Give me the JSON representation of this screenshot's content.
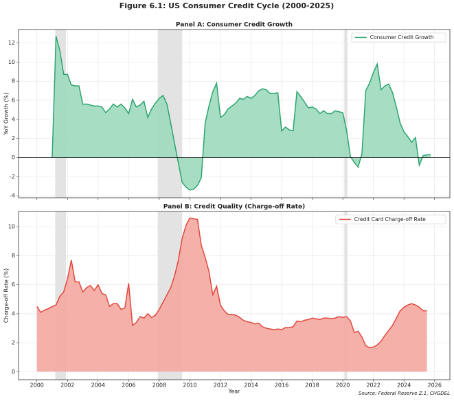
{
  "figure_title": "Figure 6.1: US Consumer Credit Cycle (2000-2025)",
  "source": "Source: Federal Reserve Z.1, CHGDEL",
  "chart_data": [
    {
      "type": "area",
      "title": "Panel A: Consumer Credit Growth",
      "ylabel": "YoY Growth (%)",
      "x": [
        2001.0,
        2001.25,
        2001.5,
        2001.75,
        2002.0,
        2002.25,
        2002.5,
        2002.75,
        2003.0,
        2003.25,
        2003.5,
        2003.75,
        2004.0,
        2004.25,
        2004.5,
        2004.75,
        2005.0,
        2005.25,
        2005.5,
        2005.75,
        2006.0,
        2006.25,
        2006.5,
        2006.75,
        2007.0,
        2007.25,
        2007.5,
        2007.75,
        2008.0,
        2008.25,
        2008.5,
        2008.75,
        2009.0,
        2009.25,
        2009.5,
        2009.75,
        2010.0,
        2010.25,
        2010.5,
        2010.75,
        2011.0,
        2011.25,
        2011.5,
        2011.75,
        2012.0,
        2012.25,
        2012.5,
        2012.75,
        2013.0,
        2013.25,
        2013.5,
        2013.75,
        2014.0,
        2014.25,
        2014.5,
        2014.75,
        2015.0,
        2015.25,
        2015.5,
        2015.75,
        2016.0,
        2016.25,
        2016.5,
        2016.75,
        2017.0,
        2017.25,
        2017.5,
        2017.75,
        2018.0,
        2018.25,
        2018.5,
        2018.75,
        2019.0,
        2019.25,
        2019.5,
        2019.75,
        2020.0,
        2020.25,
        2020.5,
        2020.75,
        2021.0,
        2021.25,
        2021.5,
        2021.75,
        2022.0,
        2022.25,
        2022.5,
        2022.75,
        2023.0,
        2023.25,
        2023.5,
        2023.75,
        2024.0,
        2024.25,
        2024.5,
        2024.75,
        2025.0,
        2025.25,
        2025.5,
        2025.75
      ],
      "series": [
        {
          "name": "Consumer Credit Growth",
          "color": "#2ca56e",
          "fill": "#9dd9bc",
          "values": [
            0,
            12.7,
            11.2,
            8.7,
            8.7,
            7.6,
            7.5,
            7.5,
            5.6,
            5.6,
            5.5,
            5.4,
            5.4,
            5.3,
            4.7,
            5.1,
            5.6,
            5.3,
            5.6,
            5.2,
            4.6,
            6.1,
            5.3,
            5.5,
            5.9,
            4.2,
            5.1,
            5.7,
            6.2,
            6.5,
            5.6,
            3.6,
            1.5,
            -0.6,
            -2.6,
            -3.1,
            -3.4,
            -3.3,
            -2.9,
            -2.1,
            3.6,
            5.4,
            6.9,
            7.8,
            4.2,
            4.5,
            5.1,
            5.4,
            5.7,
            6.2,
            6.1,
            6.4,
            6.2,
            6.5,
            7.0,
            7.2,
            7.1,
            6.7,
            6.7,
            6.8,
            2.8,
            3.2,
            2.9,
            2.8,
            6.9,
            6.4,
            5.8,
            5.2,
            5.3,
            5.1,
            4.6,
            4.9,
            4.6,
            4.6,
            4.9,
            4.8,
            4.7,
            2.8,
            0.1,
            -0.5,
            -1.0,
            0.4,
            7.0,
            7.8,
            8.9,
            9.8,
            7.1,
            7.5,
            7.7,
            6.8,
            5.3,
            3.6,
            2.7,
            2.2,
            1.6,
            2.1,
            -0.8,
            0.2,
            0.3,
            0.3
          ]
        }
      ],
      "xlim": [
        1998.8,
        2027
      ],
      "ylim": [
        -4.2,
        13.4
      ],
      "xticks": [
        2000,
        2002,
        2004,
        2006,
        2008,
        2010,
        2012,
        2014,
        2016,
        2018,
        2020,
        2022,
        2024,
        2026
      ],
      "yticks": [
        -4,
        -2,
        0,
        2,
        4,
        6,
        8,
        10,
        12
      ],
      "xtick_labels": false,
      "grid": true,
      "zero_line": true,
      "legend": "upper right",
      "shaded_spans": [
        [
          2001.2,
          2001.9
        ],
        [
          2007.9,
          2009.5
        ],
        [
          2020.1,
          2020.3
        ]
      ]
    },
    {
      "type": "area",
      "title": "Panel B: Credit Quality (Charge-off Rate)",
      "ylabel": "Charge-off Rate (%)",
      "xlabel": "Year",
      "x": [
        2000.0,
        2000.25,
        2000.5,
        2000.75,
        2001.0,
        2001.25,
        2001.5,
        2001.75,
        2002.0,
        2002.25,
        2002.5,
        2002.75,
        2003.0,
        2003.25,
        2003.5,
        2003.75,
        2004.0,
        2004.25,
        2004.5,
        2004.75,
        2005.0,
        2005.25,
        2005.5,
        2005.75,
        2006.0,
        2006.25,
        2006.5,
        2006.75,
        2007.0,
        2007.25,
        2007.5,
        2007.75,
        2008.0,
        2008.25,
        2008.5,
        2008.75,
        2009.0,
        2009.25,
        2009.5,
        2009.75,
        2010.0,
        2010.25,
        2010.5,
        2010.75,
        2011.0,
        2011.25,
        2011.5,
        2011.75,
        2012.0,
        2012.25,
        2012.5,
        2012.75,
        2013.0,
        2013.25,
        2013.5,
        2013.75,
        2014.0,
        2014.25,
        2014.5,
        2014.75,
        2015.0,
        2015.25,
        2015.5,
        2015.75,
        2016.0,
        2016.25,
        2016.5,
        2016.75,
        2017.0,
        2017.25,
        2017.5,
        2017.75,
        2018.0,
        2018.25,
        2018.5,
        2018.75,
        2019.0,
        2019.25,
        2019.5,
        2019.75,
        2020.0,
        2020.25,
        2020.5,
        2020.75,
        2021.0,
        2021.25,
        2021.5,
        2021.75,
        2022.0,
        2022.25,
        2022.5,
        2022.75,
        2023.0,
        2023.25,
        2023.5,
        2023.75,
        2024.0,
        2024.25,
        2024.5,
        2024.75,
        2025.0,
        2025.25,
        2025.5
      ],
      "series": [
        {
          "name": "Credit Card Charge-off Rate",
          "color": "#e0483e",
          "fill": "#f4a9a0",
          "values": [
            4.5,
            4.1,
            4.25,
            4.35,
            4.5,
            4.6,
            5.2,
            5.5,
            6.4,
            7.7,
            6.2,
            6.2,
            5.5,
            5.8,
            5.95,
            5.6,
            6.0,
            5.4,
            5.3,
            4.5,
            4.7,
            4.7,
            4.3,
            4.4,
            6.1,
            3.2,
            3.4,
            3.8,
            3.7,
            4.0,
            3.75,
            3.9,
            4.3,
            4.8,
            5.3,
            5.8,
            6.6,
            7.7,
            9.2,
            10.1,
            10.6,
            10.55,
            10.5,
            8.7,
            7.9,
            6.9,
            5.3,
            5.9,
            4.6,
            4.2,
            3.95,
            3.95,
            3.9,
            3.75,
            3.55,
            3.45,
            3.4,
            3.3,
            3.35,
            3.1,
            3.0,
            2.95,
            2.9,
            2.95,
            2.9,
            3.05,
            3.05,
            3.1,
            3.5,
            3.45,
            3.55,
            3.6,
            3.7,
            3.65,
            3.6,
            3.7,
            3.7,
            3.65,
            3.7,
            3.8,
            3.75,
            3.8,
            3.5,
            2.7,
            2.8,
            2.4,
            1.8,
            1.65,
            1.7,
            1.85,
            2.1,
            2.5,
            2.85,
            3.2,
            3.7,
            4.2,
            4.45,
            4.6,
            4.7,
            4.6,
            4.45,
            4.2,
            4.2
          ]
        }
      ],
      "xlim": [
        1998.8,
        2027
      ],
      "ylim": [
        -0.55,
        11.05
      ],
      "xticks": [
        2000,
        2002,
        2004,
        2006,
        2008,
        2010,
        2012,
        2014,
        2016,
        2018,
        2020,
        2022,
        2024,
        2026
      ],
      "yticks": [
        0,
        2,
        4,
        6,
        8,
        10
      ],
      "xtick_labels": true,
      "grid": true,
      "zero_line": false,
      "legend": "upper right",
      "shaded_spans": [
        [
          2001.2,
          2001.9
        ],
        [
          2007.9,
          2009.5
        ],
        [
          2020.1,
          2020.3
        ]
      ]
    }
  ]
}
